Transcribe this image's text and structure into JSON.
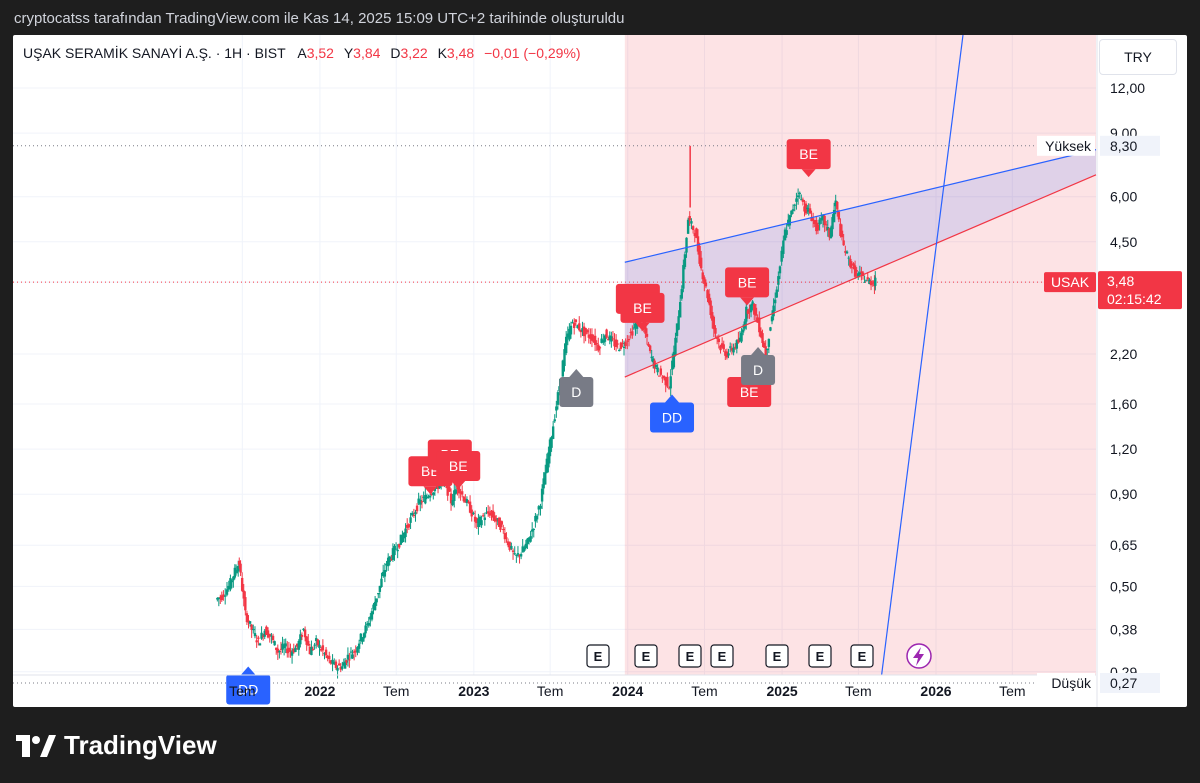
{
  "attribution": "cryptocatss tarafından TradingView.com ile Kas 14, 2025 15:09 UTC+2 tarihinde oluşturuldu",
  "header": {
    "symbol": "UŞAK SERAMİK SANAYİ A.Ş. · 1H · BIST",
    "o_label": "A",
    "o_value": "3,52",
    "h_label": "Y",
    "h_value": "3,84",
    "l_label": "D",
    "l_value": "3,22",
    "c_label": "K",
    "c_value": "3,48",
    "change": "−0,01 (−0,29%)"
  },
  "currency": "TRY",
  "brand": {
    "name": "TradingView"
  },
  "colors": {
    "up": "#089981",
    "down": "#f23645",
    "blue_line": "#2962ff",
    "label_red": "#f23645",
    "label_blue": "#2962ff",
    "label_gray": "#787b86"
  },
  "chart_data": {
    "type": "candlestick",
    "scale": "log",
    "y_ticks": [
      0.29,
      0.38,
      0.5,
      0.65,
      0.9,
      1.2,
      1.6,
      2.2,
      3.48,
      4.5,
      6.0,
      9.0,
      12.0
    ],
    "y_tick_labels": [
      "0,29",
      "0,38",
      "0,50",
      "0,65",
      "0,90",
      "1,20",
      "1,60",
      "2,20",
      "3,48",
      "4,50",
      "6,00",
      "9,00",
      "12,00"
    ],
    "x_ticks": [
      "Tem",
      "2022",
      "Tem",
      "2023",
      "Tem",
      "2024",
      "Tem",
      "2025",
      "Tem",
      "2026",
      "Tem"
    ],
    "x_tick_dates": [
      "2021-07",
      "2022-01",
      "2022-07",
      "2023-01",
      "2023-07",
      "2024-01",
      "2024-07",
      "2025-01",
      "2025-07",
      "2026-01",
      "2026-07"
    ],
    "last_price": {
      "symbol": "USAK",
      "value": "3,48",
      "countdown": "02:15:42"
    },
    "high_marker": {
      "label": "Yüksek",
      "value": "8,30"
    },
    "low_marker": {
      "label": "Düşük",
      "value": "0,27"
    },
    "weekly_closes": [
      [
        "2021-05-01",
        0.46
      ],
      [
        "2021-05-15",
        0.47
      ],
      [
        "2021-06-01",
        0.5
      ],
      [
        "2021-06-15",
        0.55
      ],
      [
        "2021-06-25",
        0.58
      ],
      [
        "2021-07-10",
        0.42
      ],
      [
        "2021-07-25",
        0.38
      ],
      [
        "2021-08-10",
        0.35
      ],
      [
        "2021-08-25",
        0.38
      ],
      [
        "2021-09-10",
        0.36
      ],
      [
        "2021-09-25",
        0.33
      ],
      [
        "2021-10-10",
        0.34
      ],
      [
        "2021-10-25",
        0.33
      ],
      [
        "2021-11-10",
        0.34
      ],
      [
        "2021-11-25",
        0.38
      ],
      [
        "2021-12-10",
        0.33
      ],
      [
        "2021-12-25",
        0.35
      ],
      [
        "2022-01-10",
        0.33
      ],
      [
        "2022-01-25",
        0.31
      ],
      [
        "2022-02-10",
        0.3
      ],
      [
        "2022-02-25",
        0.3
      ],
      [
        "2022-03-10",
        0.32
      ],
      [
        "2022-03-25",
        0.33
      ],
      [
        "2022-04-10",
        0.36
      ],
      [
        "2022-04-25",
        0.39
      ],
      [
        "2022-05-10",
        0.44
      ],
      [
        "2022-05-25",
        0.5
      ],
      [
        "2022-06-10",
        0.58
      ],
      [
        "2022-06-25",
        0.62
      ],
      [
        "2022-07-10",
        0.66
      ],
      [
        "2022-07-25",
        0.72
      ],
      [
        "2022-08-10",
        0.78
      ],
      [
        "2022-08-25",
        0.85
      ],
      [
        "2022-09-10",
        0.88
      ],
      [
        "2022-09-25",
        0.92
      ],
      [
        "2022-10-10",
        0.95
      ],
      [
        "2022-10-25",
        0.98
      ],
      [
        "2022-11-10",
        0.86
      ],
      [
        "2022-11-25",
        0.95
      ],
      [
        "2022-12-10",
        0.88
      ],
      [
        "2022-12-25",
        0.82
      ],
      [
        "2023-01-10",
        0.74
      ],
      [
        "2023-01-25",
        0.78
      ],
      [
        "2023-02-10",
        0.8
      ],
      [
        "2023-02-25",
        0.76
      ],
      [
        "2023-03-10",
        0.73
      ],
      [
        "2023-03-25",
        0.66
      ],
      [
        "2023-04-10",
        0.6
      ],
      [
        "2023-04-25",
        0.62
      ],
      [
        "2023-05-10",
        0.66
      ],
      [
        "2023-05-25",
        0.74
      ],
      [
        "2023-06-10",
        0.86
      ],
      [
        "2023-06-25",
        1.1
      ],
      [
        "2023-07-10",
        1.4
      ],
      [
        "2023-07-25",
        1.8
      ],
      [
        "2023-08-10",
        2.4
      ],
      [
        "2023-08-25",
        2.7
      ],
      [
        "2023-09-10",
        2.6
      ],
      [
        "2023-09-25",
        2.5
      ],
      [
        "2023-10-10",
        2.45
      ],
      [
        "2023-10-25",
        2.3
      ],
      [
        "2023-11-10",
        2.5
      ],
      [
        "2023-11-25",
        2.4
      ],
      [
        "2023-12-10",
        2.3
      ],
      [
        "2023-12-25",
        2.35
      ],
      [
        "2024-01-10",
        2.5
      ],
      [
        "2024-01-25",
        2.7
      ],
      [
        "2024-02-10",
        2.6
      ],
      [
        "2024-02-25",
        2.2
      ],
      [
        "2024-03-10",
        2.0
      ],
      [
        "2024-03-25",
        1.9
      ],
      [
        "2024-04-10",
        1.8
      ],
      [
        "2024-04-25",
        2.4
      ],
      [
        "2024-05-10",
        3.4
      ],
      [
        "2024-05-25",
        5.2
      ],
      [
        "2024-06-10",
        4.8
      ],
      [
        "2024-06-25",
        3.8
      ],
      [
        "2024-07-10",
        3.2
      ],
      [
        "2024-07-25",
        2.6
      ],
      [
        "2024-08-10",
        2.3
      ],
      [
        "2024-08-25",
        2.2
      ],
      [
        "2024-09-10",
        2.3
      ],
      [
        "2024-09-25",
        2.4
      ],
      [
        "2024-10-10",
        2.9
      ],
      [
        "2024-10-25",
        3.0
      ],
      [
        "2024-11-10",
        2.6
      ],
      [
        "2024-11-25",
        2.2
      ],
      [
        "2024-12-10",
        2.8
      ],
      [
        "2024-12-25",
        3.6
      ],
      [
        "2025-01-10",
        4.8
      ],
      [
        "2025-01-25",
        5.4
      ],
      [
        "2025-02-10",
        6.2
      ],
      [
        "2025-02-25",
        5.6
      ],
      [
        "2025-03-10",
        5.4
      ],
      [
        "2025-03-25",
        4.9
      ],
      [
        "2025-04-10",
        5.2
      ],
      [
        "2025-04-25",
        4.7
      ],
      [
        "2025-05-10",
        5.8
      ],
      [
        "2025-05-25",
        4.5
      ],
      [
        "2025-06-10",
        4.0
      ],
      [
        "2025-06-25",
        3.7
      ],
      [
        "2025-07-10",
        3.6
      ],
      [
        "2025-07-25",
        3.5
      ],
      [
        "2025-08-10",
        3.48
      ]
    ],
    "annotations": [
      {
        "type": "DD",
        "date": "2021-07-15",
        "side": "below",
        "value": 0.3
      },
      {
        "type": "BE",
        "date": "2022-09-20",
        "side": "above",
        "value": 0.9
      },
      {
        "type": "BE",
        "date": "2022-11-05",
        "side": "above",
        "value": 1.0
      },
      {
        "type": "BE",
        "date": "2022-11-25",
        "side": "above",
        "value": 0.93
      },
      {
        "type": "D",
        "date": "2023-09-01",
        "side": "below",
        "value": 2.0
      },
      {
        "type": "BE",
        "date": "2024-01-25",
        "side": "above",
        "value": 2.7
      },
      {
        "type": "BE",
        "date": "2024-02-05",
        "side": "above",
        "value": 2.55
      },
      {
        "type": "DD",
        "date": "2024-04-15",
        "side": "below",
        "value": 1.7
      },
      {
        "type": "BE",
        "date": "2024-10-10",
        "side": "above",
        "value": 3.0
      },
      {
        "type": "BE",
        "date": "2024-10-15",
        "side": "below",
        "value": 2.0
      },
      {
        "type": "D",
        "date": "2024-11-05",
        "side": "below",
        "value": 2.3
      },
      {
        "type": "BE",
        "date": "2025-03-05",
        "side": "above",
        "value": 6.8
      }
    ],
    "events": [
      "E",
      "E",
      "E",
      "E",
      "E",
      "E",
      "E"
    ]
  }
}
